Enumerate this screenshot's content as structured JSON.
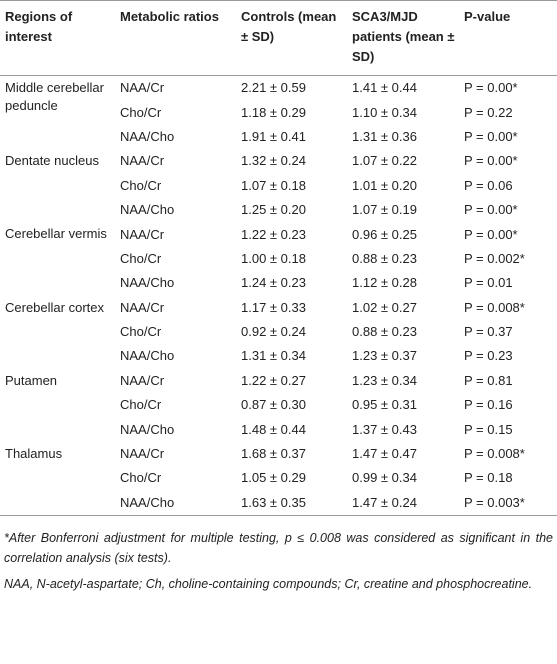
{
  "table": {
    "headers": [
      "Regions of interest",
      "Metabolic ratios",
      "Controls (mean ± SD)",
      "SCA3/MJD patients (mean ± SD)",
      "P-value"
    ],
    "groups": [
      {
        "region": "Middle cerebellar peduncle",
        "rows": [
          [
            "NAA/Cr",
            "2.21 ± 0.59",
            "1.41 ± 0.44",
            "P = 0.00*"
          ],
          [
            "Cho/Cr",
            "1.18 ± 0.29",
            "1.10 ± 0.34",
            "P = 0.22"
          ],
          [
            "NAA/Cho",
            "1.91 ± 0.41",
            "1.31 ± 0.36",
            "P = 0.00*"
          ]
        ]
      },
      {
        "region": "Dentate nucleus",
        "rows": [
          [
            "NAA/Cr",
            "1.32 ± 0.24",
            "1.07 ± 0.22",
            "P = 0.00*"
          ],
          [
            "Cho/Cr",
            "1.07 ± 0.18",
            "1.01 ± 0.20",
            "P = 0.06"
          ],
          [
            "NAA/Cho",
            "1.25 ± 0.20",
            "1.07 ± 0.19",
            "P = 0.00*"
          ]
        ]
      },
      {
        "region": "Cerebellar vermis",
        "rows": [
          [
            "NAA/Cr",
            "1.22 ± 0.23",
            "0.96 ± 0.25",
            "P = 0.00*"
          ],
          [
            "Cho/Cr",
            "1.00 ± 0.18",
            "0.88 ± 0.23",
            "P = 0.002*"
          ],
          [
            "NAA/Cho",
            "1.24 ± 0.23",
            "1.12 ± 0.28",
            "P = 0.01"
          ]
        ]
      },
      {
        "region": "Cerebellar cortex",
        "rows": [
          [
            "NAA/Cr",
            "1.17 ± 0.33",
            "1.02 ± 0.27",
            "P = 0.008*"
          ],
          [
            "Cho/Cr",
            "0.92 ± 0.24",
            "0.88 ± 0.23",
            "P = 0.37"
          ],
          [
            "NAA/Cho",
            "1.31 ± 0.34",
            "1.23 ± 0.37",
            "P = 0.23"
          ]
        ]
      },
      {
        "region": "Putamen",
        "rows": [
          [
            "NAA/Cr",
            "1.22 ± 0.27",
            "1.23 ± 0.34",
            "P = 0.81"
          ],
          [
            "Cho/Cr",
            "0.87 ± 0.30",
            "0.95 ± 0.31",
            "P = 0.16"
          ],
          [
            "NAA/Cho",
            "1.48 ± 0.44",
            "1.37 ± 0.43",
            "P = 0.15"
          ]
        ]
      },
      {
        "region": "Thalamus",
        "rows": [
          [
            "NAA/Cr",
            "1.68 ± 0.37",
            "1.47 ± 0.47",
            "P = 0.008*"
          ],
          [
            "Cho/Cr",
            "1.05 ± 0.29",
            "0.99 ± 0.34",
            "P = 0.18"
          ],
          [
            "NAA/Cho",
            "1.63 ± 0.35",
            "1.47 ± 0.24",
            "P = 0.003*"
          ]
        ]
      }
    ],
    "footnotes": [
      "*After Bonferroni adjustment for multiple testing, p ≤ 0.008 was considered as significant in the correlation analysis (six tests).",
      "NAA, N-acetyl-aspartate; Ch, choline-containing compounds; Cr, creatine and phosphocreatine."
    ]
  }
}
